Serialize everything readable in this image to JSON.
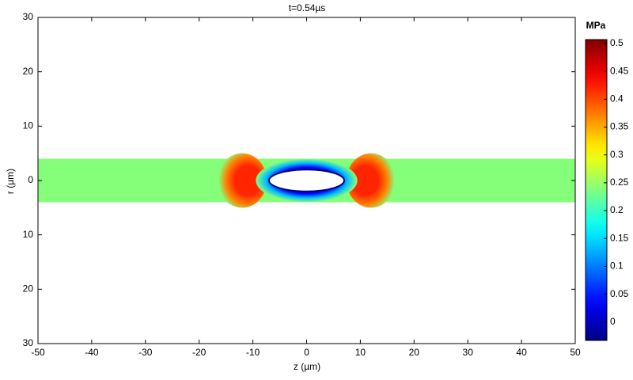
{
  "chart_data": {
    "type": "field",
    "title": "t=0.54µs",
    "xlabel": "z (µm)",
    "ylabel": "r (µm)",
    "xlim": [
      -50,
      50
    ],
    "xticks": [
      -50,
      -40,
      -30,
      -20,
      -10,
      0,
      10,
      20,
      30,
      40,
      50
    ],
    "ylim": [
      -30,
      30
    ],
    "yticks": [
      30,
      20,
      10,
      0,
      {
        "value": -10,
        "label": "10"
      },
      {
        "value": -20,
        "label": "20"
      },
      {
        "value": -30,
        "label": "30"
      }
    ],
    "colormap": "jet",
    "colorbar": {
      "label": "MPa",
      "clim": [
        -0.033,
        0.507
      ],
      "ticks": [
        0,
        0.05,
        0.1,
        0.15,
        0.2,
        0.25,
        0.3,
        0.35,
        0.4,
        0.45,
        0.5
      ]
    },
    "field": {
      "channel": {
        "z": [
          -50,
          50
        ],
        "r": 4,
        "value": 0.24
      },
      "bulges": [
        {
          "z": -12,
          "r": 5,
          "value": 0.42
        },
        {
          "z": 12,
          "r": 5,
          "value": 0.42
        }
      ],
      "bubble": {
        "z": [
          -7,
          7
        ],
        "r": 2,
        "edge_value": 0.03
      }
    }
  }
}
